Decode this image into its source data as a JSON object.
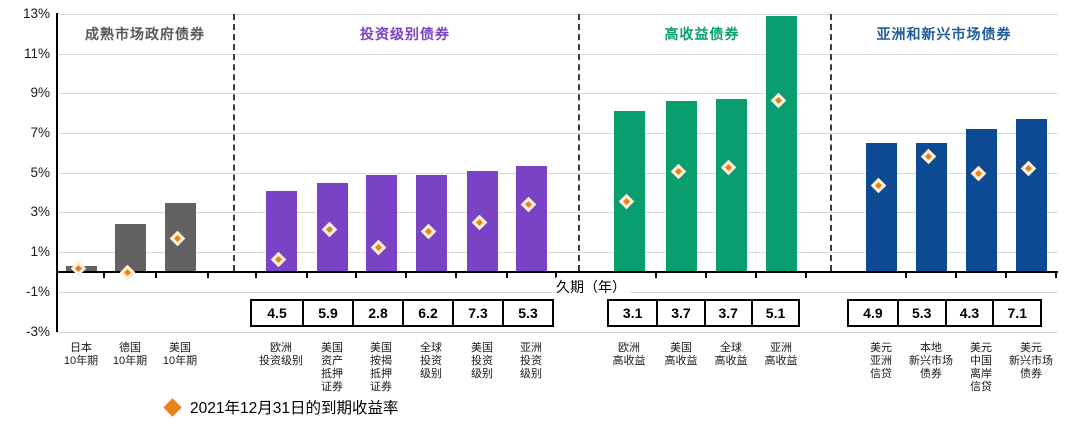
{
  "legend": {
    "label": "2021年12月31日的到期收益率"
  },
  "duration_row_label": "久期（年）",
  "colors": {
    "diamond_fill": "#E8821E",
    "diamond_border": "#FCF0DC",
    "gridline": "#D9D9D9",
    "axis": "#000000"
  },
  "y_axis": {
    "ticks": [
      {
        "label": "13%",
        "value": 13
      },
      {
        "label": "11%",
        "value": 11
      },
      {
        "label": "9%",
        "value": 9
      },
      {
        "label": "7%",
        "value": 7
      },
      {
        "label": "5%",
        "value": 5
      },
      {
        "label": "3%",
        "value": 3
      },
      {
        "label": "1%",
        "value": 1
      },
      {
        "label": "-1%",
        "value": -1
      },
      {
        "label": "-3%",
        "value": -3
      }
    ]
  },
  "chart_data": {
    "type": "bar",
    "ylim": [
      -3,
      13
    ],
    "grid": true,
    "legend_position": "bottom-left",
    "marker_legend": "2021年12月31日的到期收益率",
    "duration_axis_label": "久期（年）",
    "sections": [
      {
        "title": "成熟市场政府债券",
        "title_color": "#595959",
        "bar_color": "#626262",
        "bars": [
          {
            "label_lines": [
              "日本",
              "10年期"
            ],
            "bar_value": 0.3,
            "diamond_value": 0.05,
            "duration": null
          },
          {
            "label_lines": [
              "德国",
              "10年期"
            ],
            "bar_value": 2.4,
            "diamond_value": -0.18,
            "duration": null
          },
          {
            "label_lines": [
              "美国",
              "10年期"
            ],
            "bar_value": 3.5,
            "diamond_value": 1.55,
            "duration": null
          }
        ]
      },
      {
        "title": "投资级别债券",
        "title_color": "#7A42C4",
        "bar_color": "#7A42C4",
        "bars": [
          {
            "label_lines": [
              "欧洲",
              "投资级别"
            ],
            "bar_value": 4.1,
            "diamond_value": 0.5,
            "duration": "4.5"
          },
          {
            "label_lines": [
              "美国",
              "资产",
              "抵押",
              "证券"
            ],
            "bar_value": 4.5,
            "diamond_value": 2.0,
            "duration": "5.9"
          },
          {
            "label_lines": [
              "美国",
              "按揭",
              "抵押",
              "证券"
            ],
            "bar_value": 4.9,
            "diamond_value": 1.1,
            "duration": "2.8"
          },
          {
            "label_lines": [
              "全球",
              "投资",
              "级别"
            ],
            "bar_value": 4.9,
            "diamond_value": 1.9,
            "duration": "6.2"
          },
          {
            "label_lines": [
              "美国",
              "投资",
              "级别"
            ],
            "bar_value": 5.1,
            "diamond_value": 2.35,
            "duration": "7.3"
          },
          {
            "label_lines": [
              "亚洲",
              "投资",
              "级别"
            ],
            "bar_value": 5.35,
            "diamond_value": 3.25,
            "duration": "5.3"
          }
        ]
      },
      {
        "title": "高收益债券",
        "title_color": "#089E70",
        "bar_color": "#089E70",
        "bars": [
          {
            "label_lines": [
              "欧洲",
              "高收益"
            ],
            "bar_value": 8.1,
            "diamond_value": 3.4,
            "duration": "3.1"
          },
          {
            "label_lines": [
              "美国",
              "高收益"
            ],
            "bar_value": 8.6,
            "diamond_value": 4.9,
            "duration": "3.7"
          },
          {
            "label_lines": [
              "全球",
              "高收益"
            ],
            "bar_value": 8.7,
            "diamond_value": 5.1,
            "duration": "3.7"
          },
          {
            "label_lines": [
              "亚洲",
              "高收益"
            ],
            "bar_value": 12.9,
            "diamond_value": 8.5,
            "duration": "5.1"
          }
        ]
      },
      {
        "title": "亚洲和新兴市场债券",
        "title_color": "#1F5C99",
        "bar_color": "#0D4A94",
        "bars": [
          {
            "label_lines": [
              "美元",
              "亚洲",
              "信贷"
            ],
            "bar_value": 6.5,
            "diamond_value": 4.2,
            "duration": "4.9"
          },
          {
            "label_lines": [
              "本地",
              "新兴市场",
              "债券"
            ],
            "bar_value": 6.5,
            "diamond_value": 5.65,
            "duration": "5.3"
          },
          {
            "label_lines": [
              "美元",
              "中国",
              "离岸",
              "信贷"
            ],
            "bar_value": 7.2,
            "diamond_value": 4.8,
            "duration": "4.3"
          },
          {
            "label_lines": [
              "美元",
              "新兴市场",
              "债券"
            ],
            "bar_value": 7.7,
            "diamond_value": 5.05,
            "duration": "7.1"
          }
        ]
      }
    ]
  }
}
